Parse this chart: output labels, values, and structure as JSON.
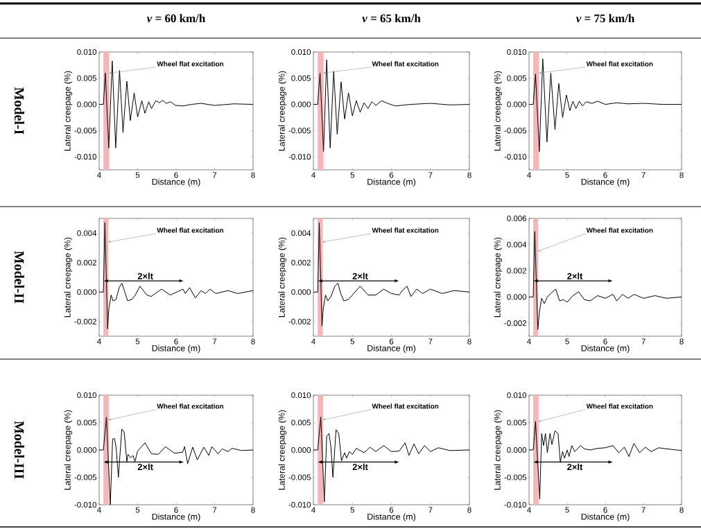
{
  "chart_data": [
    {
      "type": "line",
      "title": "*v* = 60 km/h",
      "xlabel": "Distance (m)",
      "ylabel": "Lateral creepage (%)",
      "color": "#000000",
      "x": [
        4.0,
        4.11,
        4.16,
        4.25,
        4.34,
        4.43,
        4.53,
        4.62,
        4.72,
        4.81,
        4.91,
        5.0,
        5.11,
        5.19,
        5.29,
        5.36,
        5.47,
        5.57,
        5.65,
        5.74,
        5.86,
        5.98,
        6.18,
        6.4,
        6.65,
        7.0,
        7.5,
        8.0
      ],
      "values": [
        0,
        0,
        0.006,
        -0.0083,
        0.0083,
        -0.0083,
        0.0065,
        -0.0054,
        0.0044,
        -0.0031,
        0.0022,
        -0.0024,
        0.0007,
        -0.0017,
        0.0005,
        -0.0008,
        0.0007,
        0.0003,
        0.0008,
        0.0002,
        0.0005,
        -0.0002,
        -0.0003,
        0.0,
        0.0002,
        -0.0002,
        0.0001,
        0.0
      ],
      "xlim": [
        4,
        8
      ],
      "xticks": [
        4,
        5,
        6,
        7,
        8
      ],
      "ylim": [
        -0.0125,
        0.01
      ],
      "yticks": [
        {
          "value": -0.01,
          "label": "-0.010"
        },
        {
          "value": -0.005,
          "label": "-0.005"
        },
        {
          "value": 0,
          "label": "0.000"
        },
        {
          "value": 0.005,
          "label": "0.005"
        },
        {
          "value": 0.01,
          "label": "0.010"
        }
      ],
      "bands": [
        {
          "axis": "x",
          "from": 4.11,
          "to": 4.26,
          "color": "#f4b6b6"
        }
      ],
      "annotations": [
        {
          "text": "Wheel flat excitation",
          "x": 4.26,
          "y": 0.006
        },
        "Model-I"
      ]
    },
    {
      "type": "line",
      "title": "*v* = 65 km/h",
      "xlabel": "Distance (m)",
      "ylabel": "Lateral creepage (%)",
      "color": "#000000",
      "x": [
        4.0,
        4.11,
        4.17,
        4.26,
        4.34,
        4.43,
        4.52,
        4.61,
        4.71,
        4.8,
        4.9,
        5.0,
        5.1,
        5.2,
        5.3,
        5.4,
        5.5,
        5.6,
        5.75,
        5.9,
        6.1,
        6.5,
        7.0,
        7.5,
        8.0
      ],
      "values": [
        0,
        0,
        0.006,
        -0.009,
        0.0085,
        -0.0083,
        0.0063,
        -0.0057,
        0.0043,
        -0.0028,
        0.0022,
        -0.0022,
        0.0007,
        -0.0015,
        0.0003,
        -0.0008,
        0.0005,
        -0.0002,
        0.0007,
        0.0002,
        -0.0003,
        0.0,
        0.0002,
        -0.0001,
        0.0
      ],
      "xlim": [
        4,
        8
      ],
      "xticks": [
        4,
        5,
        6,
        7,
        8
      ],
      "ylim": [
        -0.0125,
        0.01
      ],
      "yticks": [
        {
          "value": -0.01,
          "label": "-0.010"
        },
        {
          "value": -0.005,
          "label": "-0.005"
        },
        {
          "value": 0,
          "label": "0.000"
        },
        {
          "value": 0.005,
          "label": "0.005"
        },
        {
          "value": 0.01,
          "label": "0.010"
        }
      ],
      "bands": [
        {
          "axis": "x",
          "from": 4.11,
          "to": 4.26,
          "color": "#f4b6b6"
        }
      ],
      "annotations": [
        {
          "text": "Wheel flat excitation",
          "x": 4.26,
          "y": 0.006
        }
      ]
    },
    {
      "type": "line",
      "title": "*v* = 75 km/h",
      "xlabel": "Distance (m)",
      "ylabel": "Lateral creepage (%)",
      "color": "#000000",
      "x": [
        4.0,
        4.11,
        4.17,
        4.27,
        4.36,
        4.47,
        4.57,
        4.68,
        4.78,
        4.88,
        4.98,
        5.07,
        5.15,
        5.23,
        5.32,
        5.4,
        5.5,
        5.65,
        5.8,
        6.0,
        6.3,
        6.6,
        7.0,
        7.5,
        8.0
      ],
      "values": [
        0,
        0,
        0.0058,
        -0.009,
        0.0087,
        -0.0072,
        0.006,
        -0.0048,
        0.004,
        -0.0025,
        0.0018,
        -0.0012,
        0.0006,
        -0.0008,
        0.0006,
        -0.0003,
        0.0005,
        0.0002,
        0.0006,
        0.0,
        0.0003,
        0.0001,
        0.0002,
        0.0,
        0.0
      ],
      "xlim": [
        4,
        8
      ],
      "xticks": [
        4,
        5,
        6,
        7,
        8
      ],
      "ylim": [
        -0.0125,
        0.01
      ],
      "yticks": [
        {
          "value": -0.01,
          "label": "-0.010"
        },
        {
          "value": -0.005,
          "label": "-0.005"
        },
        {
          "value": 0,
          "label": "0.000"
        },
        {
          "value": 0.005,
          "label": "0.005"
        },
        {
          "value": 0.01,
          "label": "0.010"
        }
      ],
      "bands": [
        {
          "axis": "x",
          "from": 4.11,
          "to": 4.26,
          "color": "#f4b6b6"
        }
      ],
      "annotations": [
        {
          "text": "Wheel flat excitation",
          "x": 4.26,
          "y": 0.006
        }
      ]
    },
    {
      "type": "line",
      "xlabel": "Distance (m)",
      "ylabel": "Lateral creepage (%)",
      "color": "#000000",
      "x": [
        4.0,
        4.11,
        4.15,
        4.22,
        4.25,
        4.31,
        4.36,
        4.44,
        4.52,
        4.59,
        4.68,
        4.74,
        4.85,
        4.94,
        5.06,
        5.24,
        5.35,
        5.62,
        5.85,
        6.18,
        6.24,
        6.35,
        6.5,
        6.65,
        6.76,
        6.88,
        7.03,
        7.35,
        7.6,
        8.0
      ],
      "values": [
        0,
        0,
        0.0047,
        -0.0025,
        -0.0012,
        -0.0002,
        -0.0006,
        -0.0005,
        0.0003,
        0.0006,
        -0.0001,
        -0.0006,
        -0.0005,
        -0.0002,
        0.0004,
        -0.0002,
        -0.0003,
        0.0002,
        -0.0002,
        0.0002,
        -0.0001,
        0.0003,
        -0.0004,
        0.0001,
        -0.0001,
        0.0002,
        -0.0001,
        0.0001,
        -0.0001,
        0.0001
      ],
      "xlim": [
        4,
        8
      ],
      "xticks": [
        4,
        5,
        6,
        7,
        8
      ],
      "ylim": [
        -0.003,
        0.005
      ],
      "yticks": [
        {
          "value": -0.002,
          "label": "-0.002"
        },
        {
          "value": 0,
          "label": "0.000"
        },
        {
          "value": 0.002,
          "label": "0.002"
        },
        {
          "value": 0.004,
          "label": "0.004"
        }
      ],
      "bands": [
        {
          "axis": "x",
          "from": 4.11,
          "to": 4.24,
          "color": "#f4b6b6"
        }
      ],
      "annotations": [
        {
          "text": "Wheel flat excitation",
          "x": 4.24,
          "y": 0.0034
        },
        "Model-II",
        "2×lt"
      ]
    },
    {
      "type": "line",
      "xlabel": "Distance (m)",
      "ylabel": "Lateral creepage (%)",
      "color": "#000000",
      "x": [
        4.0,
        4.11,
        4.15,
        4.22,
        4.25,
        4.31,
        4.37,
        4.45,
        4.55,
        4.63,
        4.7,
        4.78,
        4.9,
        5.0,
        5.2,
        5.4,
        5.6,
        5.8,
        6.0,
        6.2,
        6.28,
        6.4,
        6.5,
        6.65,
        6.8,
        7.0,
        7.3,
        7.6,
        8.0
      ],
      "values": [
        0,
        0,
        0.0047,
        -0.0023,
        -0.0012,
        -0.0002,
        -0.0006,
        -0.0003,
        0.0004,
        0.0006,
        -0.0001,
        -0.0006,
        -0.0005,
        -0.0002,
        0.0004,
        -0.0002,
        -0.0002,
        0.0002,
        -0.0001,
        -0.0002,
        0.0001,
        0.0004,
        -0.0003,
        0.0002,
        -0.0001,
        0.0002,
        -0.0001,
        0.0001,
        0.0
      ],
      "xlim": [
        4,
        8
      ],
      "xticks": [
        4,
        5,
        6,
        7,
        8
      ],
      "ylim": [
        -0.003,
        0.005
      ],
      "yticks": [
        {
          "value": -0.002,
          "label": "-0.002"
        },
        {
          "value": 0,
          "label": "0.000"
        },
        {
          "value": 0.002,
          "label": "0.002"
        },
        {
          "value": 0.004,
          "label": "0.004"
        }
      ],
      "bands": [
        {
          "axis": "x",
          "from": 4.11,
          "to": 4.24,
          "color": "#f4b6b6"
        }
      ],
      "annotations": [
        {
          "text": "Wheel flat excitation",
          "x": 4.24,
          "y": 0.0034
        },
        "2×lt"
      ]
    },
    {
      "type": "line",
      "xlabel": "Distance (m)",
      "ylabel": "Lateral creepage (%)",
      "color": "#000000",
      "x": [
        4.0,
        4.11,
        4.15,
        4.23,
        4.27,
        4.33,
        4.4,
        4.48,
        4.58,
        4.7,
        4.8,
        4.9,
        5.0,
        5.15,
        5.3,
        5.45,
        5.6,
        5.8,
        6.0,
        6.2,
        6.3,
        6.45,
        6.6,
        6.75,
        7.0,
        7.3,
        7.6,
        8.0
      ],
      "values": [
        0,
        0,
        0.005,
        -0.0025,
        -0.0012,
        -0.0001,
        -0.0005,
        0.0,
        0.0003,
        0.0006,
        -0.0003,
        -0.0002,
        -0.0004,
        0.0001,
        0.0004,
        -0.0002,
        -0.0003,
        0.0001,
        -0.0001,
        0.0002,
        -0.0003,
        0.0002,
        -0.0001,
        0.0002,
        -0.0001,
        0.0001,
        -0.0001,
        0.0
      ],
      "xlim": [
        4,
        8
      ],
      "xticks": [
        4,
        5,
        6,
        7,
        8
      ],
      "ylim": [
        -0.003,
        0.006
      ],
      "yticks": [
        {
          "value": -0.002,
          "label": "-0.002"
        },
        {
          "value": 0,
          "label": "0.000"
        },
        {
          "value": 0.002,
          "label": "0.002"
        },
        {
          "value": 0.004,
          "label": "0.004"
        },
        {
          "value": 0.006,
          "label": "0.006"
        }
      ],
      "bands": [
        {
          "axis": "x",
          "from": 4.11,
          "to": 4.24,
          "color": "#f4b6b6"
        }
      ],
      "annotations": [
        {
          "text": "Wheel flat excitation",
          "x": 4.24,
          "y": 0.0035
        },
        "2×lt"
      ]
    },
    {
      "type": "line",
      "xlabel": "Distance (m)",
      "ylabel": "Lateral creepage (%)",
      "color": "#000000",
      "x": [
        4.0,
        4.11,
        4.19,
        4.29,
        4.35,
        4.4,
        4.44,
        4.5,
        4.55,
        4.59,
        4.65,
        4.72,
        4.75,
        4.82,
        4.88,
        4.93,
        5.0,
        5.19,
        5.36,
        5.54,
        5.72,
        5.96,
        6.17,
        6.22,
        6.3,
        6.43,
        6.55,
        6.72,
        6.85,
        6.93,
        7.09,
        7.2,
        7.35,
        7.45,
        7.7,
        8.0
      ],
      "values": [
        0,
        0,
        0.006,
        -0.01,
        0.002,
        0.0021,
        0.0005,
        -0.005,
        0.0,
        0.0038,
        0.0033,
        -0.0021,
        -0.0008,
        -0.0014,
        -0.001,
        -0.0021,
        -0.0002,
        0.0013,
        -0.0007,
        -0.0008,
        0.0006,
        -0.0006,
        -0.0004,
        0.0006,
        -0.0025,
        0.0005,
        -0.0018,
        0.0005,
        -0.001,
        0.0006,
        -0.0007,
        0.0002,
        -0.0003,
        0.0003,
        -0.0001,
        0.0
      ],
      "xlim": [
        4,
        8
      ],
      "xticks": [
        4,
        5,
        6,
        7,
        8
      ],
      "ylim": [
        -0.01,
        0.01
      ],
      "yticks": [
        {
          "value": -0.01,
          "label": "-0.010"
        },
        {
          "value": -0.005,
          "label": "-0.005"
        },
        {
          "value": 0,
          "label": "0.000"
        },
        {
          "value": 0.005,
          "label": "0.005"
        },
        {
          "value": 0.01,
          "label": "0.010"
        }
      ],
      "bands": [
        {
          "axis": "x",
          "from": 4.11,
          "to": 4.25,
          "color": "#f4b6b6"
        }
      ],
      "annotations": [
        {
          "text": "Wheel flat excitation",
          "x": 4.25,
          "y": 0.0055
        },
        "Model-III",
        "2×lt"
      ]
    },
    {
      "type": "line",
      "xlabel": "Distance (m)",
      "ylabel": "Lateral creepage (%)",
      "color": "#000000",
      "x": [
        4.0,
        4.11,
        4.19,
        4.28,
        4.34,
        4.4,
        4.45,
        4.5,
        4.58,
        4.65,
        4.72,
        4.8,
        4.85,
        4.92,
        5.0,
        5.1,
        5.3,
        5.45,
        5.6,
        5.8,
        6.0,
        6.2,
        6.35,
        6.45,
        6.58,
        6.7,
        6.85,
        7.0,
        7.2,
        7.5,
        8.0
      ],
      "values": [
        0,
        0,
        0.006,
        -0.0095,
        0.0025,
        0.003,
        0.0005,
        -0.005,
        0.0037,
        0.003,
        -0.002,
        -0.0005,
        -0.0015,
        -0.0003,
        -0.0008,
        0.0003,
        -0.0005,
        0.0005,
        -0.0003,
        0.0008,
        -0.0003,
        -0.0002,
        0.0013,
        -0.001,
        0.0011,
        -0.0007,
        0.0008,
        -0.0003,
        0.0004,
        -0.0001,
        0.0
      ],
      "xlim": [
        4,
        8
      ],
      "xticks": [
        4,
        5,
        6,
        7,
        8
      ],
      "ylim": [
        -0.01,
        0.01
      ],
      "yticks": [
        {
          "value": -0.01,
          "label": "-0.010"
        },
        {
          "value": -0.005,
          "label": "-0.005"
        },
        {
          "value": 0,
          "label": "0.000"
        },
        {
          "value": 0.005,
          "label": "0.005"
        },
        {
          "value": 0.01,
          "label": "0.010"
        }
      ],
      "bands": [
        {
          "axis": "x",
          "from": 4.11,
          "to": 4.25,
          "color": "#f4b6b6"
        }
      ],
      "annotations": [
        {
          "text": "Wheel flat excitation",
          "x": 4.25,
          "y": 0.0055
        },
        "2×lt"
      ]
    },
    {
      "type": "line",
      "xlabel": "Distance (m)",
      "ylabel": "Lateral creepage (%)",
      "color": "#000000",
      "x": [
        4.0,
        4.11,
        4.17,
        4.28,
        4.33,
        4.38,
        4.43,
        4.48,
        4.55,
        4.6,
        4.68,
        4.76,
        4.82,
        4.88,
        4.93,
        5.0,
        5.05,
        5.12,
        5.2,
        5.35,
        5.45,
        5.6,
        5.8,
        6.0,
        6.2,
        6.35,
        6.5,
        6.62,
        6.75,
        6.9,
        7.05,
        7.2,
        7.4,
        7.6,
        8.0
      ],
      "values": [
        0,
        0,
        0.0052,
        -0.009,
        0.003,
        0.0008,
        0.003,
        -0.0005,
        0.003,
        0.001,
        0.0035,
        0.003,
        -0.0022,
        -0.0003,
        -0.0015,
        0.0,
        -0.0012,
        0.0008,
        -0.0003,
        0.0008,
        0.0002,
        0.0,
        0.0003,
        0.0004,
        0.0008,
        -0.0005,
        0.0005,
        -0.0012,
        0.0012,
        -0.0005,
        0.0005,
        -0.0003,
        0.0004,
        0.0002,
        -0.0001
      ],
      "xlim": [
        4,
        8
      ],
      "xticks": [
        4,
        5,
        6,
        7,
        8
      ],
      "ylim": [
        -0.01,
        0.01
      ],
      "yticks": [
        {
          "value": -0.01,
          "label": "-0.010"
        },
        {
          "value": -0.005,
          "label": "-0.005"
        },
        {
          "value": 0,
          "label": "0.000"
        },
        {
          "value": 0.005,
          "label": "0.005"
        },
        {
          "value": 0.01,
          "label": "0.010"
        }
      ],
      "bands": [
        {
          "axis": "x",
          "from": 4.11,
          "to": 4.25,
          "color": "#f4b6b6"
        }
      ],
      "annotations": [
        {
          "text": "Wheel flat excitation",
          "x": 4.25,
          "y": 0.0052
        },
        "2×lt"
      ]
    }
  ]
}
